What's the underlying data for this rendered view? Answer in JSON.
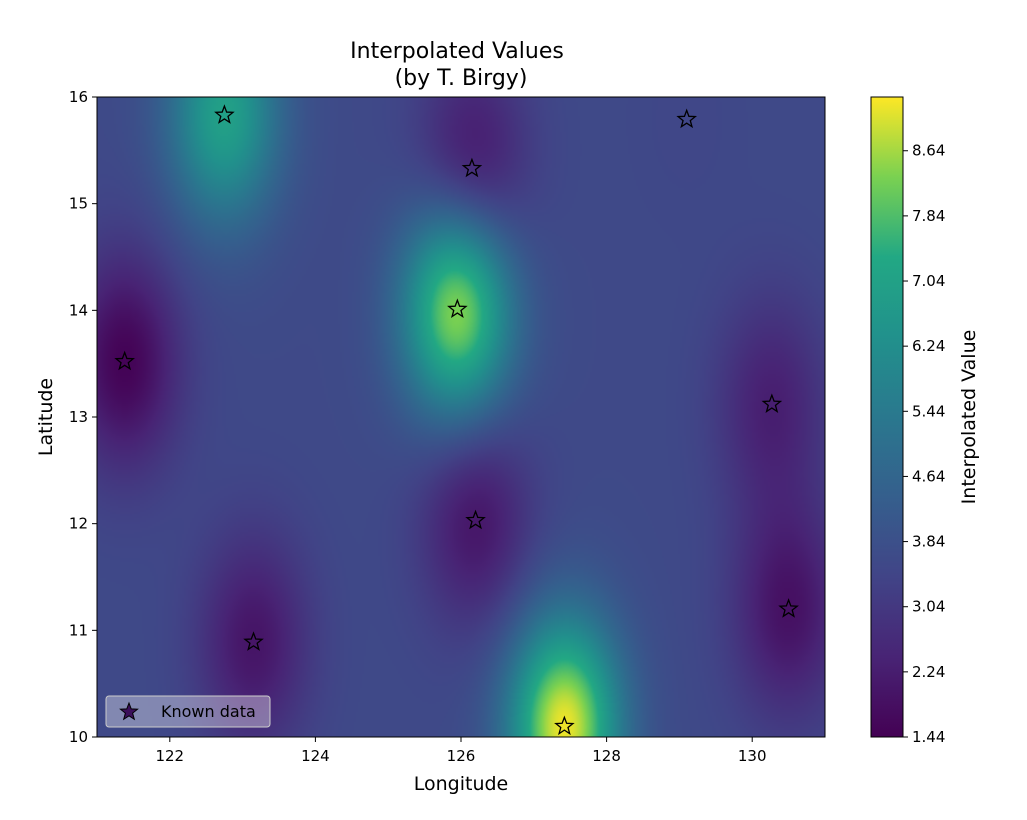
{
  "chart_data": {
    "type": "heatmap",
    "title_line1": "Interpolated Values",
    "title_line2": "(by T. Birgy)",
    "xlabel": "Longitude",
    "ylabel": "Latitude",
    "xlim": [
      121,
      131
    ],
    "ylim": [
      10,
      16
    ],
    "xticks": [
      "122",
      "124",
      "126",
      "128",
      "130"
    ],
    "yticks": [
      "10",
      "11",
      "12",
      "13",
      "14",
      "15",
      "16"
    ],
    "colormap": "viridis",
    "colorbar": {
      "label": "Interpolated Value",
      "range": [
        1.44,
        9.3
      ],
      "ticks": [
        "1.44",
        "2.24",
        "3.04",
        "3.84",
        "4.64",
        "5.44",
        "6.24",
        "7.04",
        "7.84",
        "8.64"
      ]
    },
    "known_points": [
      {
        "lon": 122.75,
        "lat": 15.83,
        "value": 7.0
      },
      {
        "lon": 126.15,
        "lat": 15.33,
        "value": 1.9
      },
      {
        "lon": 129.1,
        "lat": 15.79,
        "value": 3.5
      },
      {
        "lon": 125.95,
        "lat": 14.01,
        "value": 8.6
      },
      {
        "lon": 121.38,
        "lat": 13.52,
        "value": 1.5
      },
      {
        "lon": 130.27,
        "lat": 13.12,
        "value": 2.3
      },
      {
        "lon": 126.2,
        "lat": 12.03,
        "value": 2.0
      },
      {
        "lon": 123.15,
        "lat": 10.89,
        "value": 2.0
      },
      {
        "lon": 130.5,
        "lat": 11.2,
        "value": 1.9
      },
      {
        "lon": 127.42,
        "lat": 10.1,
        "value": 9.2
      }
    ],
    "legend": {
      "label": "Known data",
      "position": "lower-left"
    }
  }
}
